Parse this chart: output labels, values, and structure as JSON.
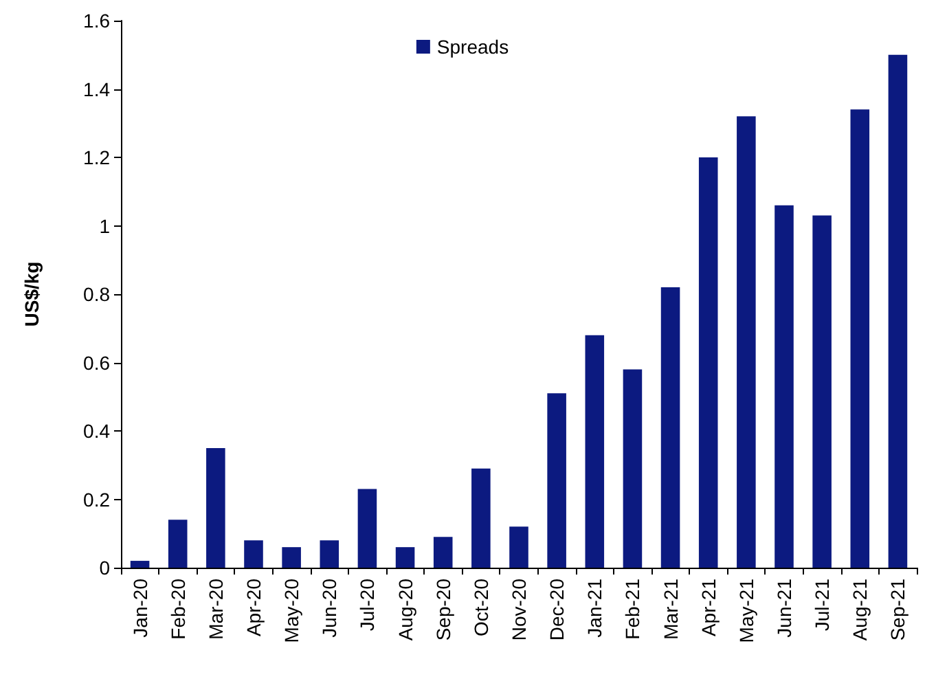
{
  "chart_data": {
    "type": "bar",
    "ylabel": "US$/kg",
    "categories": [
      "Jan-20",
      "Feb-20",
      "Mar-20",
      "Apr-20",
      "May-20",
      "Jun-20",
      "Jul-20",
      "Aug-20",
      "Sep-20",
      "Oct-20",
      "Nov-20",
      "Dec-20",
      "Jan-21",
      "Feb-21",
      "Mar-21",
      "Apr-21",
      "May-21",
      "Jun-21",
      "Jul-21",
      "Aug-21",
      "Sep-21"
    ],
    "series": [
      {
        "name": "Spreads",
        "color": "#0c1a80",
        "values": [
          0.02,
          0.14,
          0.35,
          0.08,
          0.06,
          0.08,
          0.23,
          0.06,
          0.09,
          0.29,
          0.12,
          0.51,
          0.68,
          0.58,
          0.82,
          1.2,
          1.32,
          1.06,
          1.03,
          1.34,
          1.5
        ]
      }
    ],
    "ylim": [
      0,
      1.6
    ],
    "yticks": [
      0,
      0.2,
      0.4,
      0.6,
      0.8,
      1,
      1.2,
      1.4,
      1.6
    ],
    "grid": false,
    "legend": "top"
  }
}
